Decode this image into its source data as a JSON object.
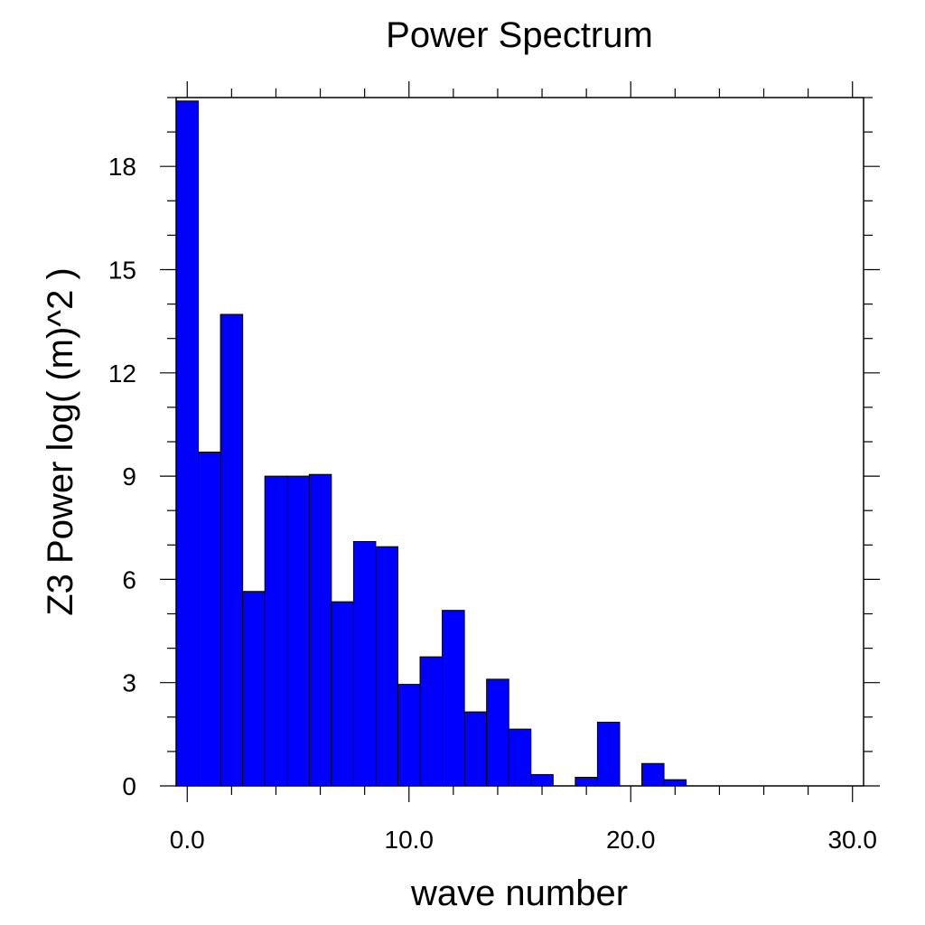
{
  "chart_data": {
    "type": "bar",
    "title": "Power Spectrum",
    "xlabel": "wave number",
    "ylabel": "Z3 Power log( (m)^2 )",
    "xlim": [
      -0.5,
      30.5
    ],
    "ylim": [
      0,
      20
    ],
    "bar_width": 1.0,
    "bar_color": "#0000ff",
    "edge_color": "#000000",
    "x_ticks": [
      0,
      10,
      20,
      30
    ],
    "x_tick_labels": [
      "0.0",
      "10.0",
      "20.0",
      "30.0"
    ],
    "y_ticks": [
      0,
      3,
      6,
      9,
      12,
      15,
      18
    ],
    "y_tick_labels": [
      "0",
      "3",
      "6",
      "9",
      "12",
      "15",
      "18"
    ],
    "grid": false,
    "x": [
      0,
      1,
      2,
      3,
      4,
      5,
      6,
      7,
      8,
      9,
      10,
      11,
      12,
      13,
      14,
      15,
      16,
      17,
      18,
      19,
      20,
      21,
      22,
      23,
      24,
      25,
      26,
      27,
      28,
      29,
      30
    ],
    "values": [
      19.9,
      9.7,
      13.7,
      5.65,
      9.0,
      9.0,
      9.05,
      5.35,
      7.1,
      6.95,
      2.95,
      3.75,
      5.1,
      2.15,
      3.1,
      1.65,
      0.33,
      0,
      0.25,
      1.85,
      0,
      0.65,
      0.18,
      0,
      0,
      0,
      0,
      0,
      0,
      0,
      0
    ]
  }
}
